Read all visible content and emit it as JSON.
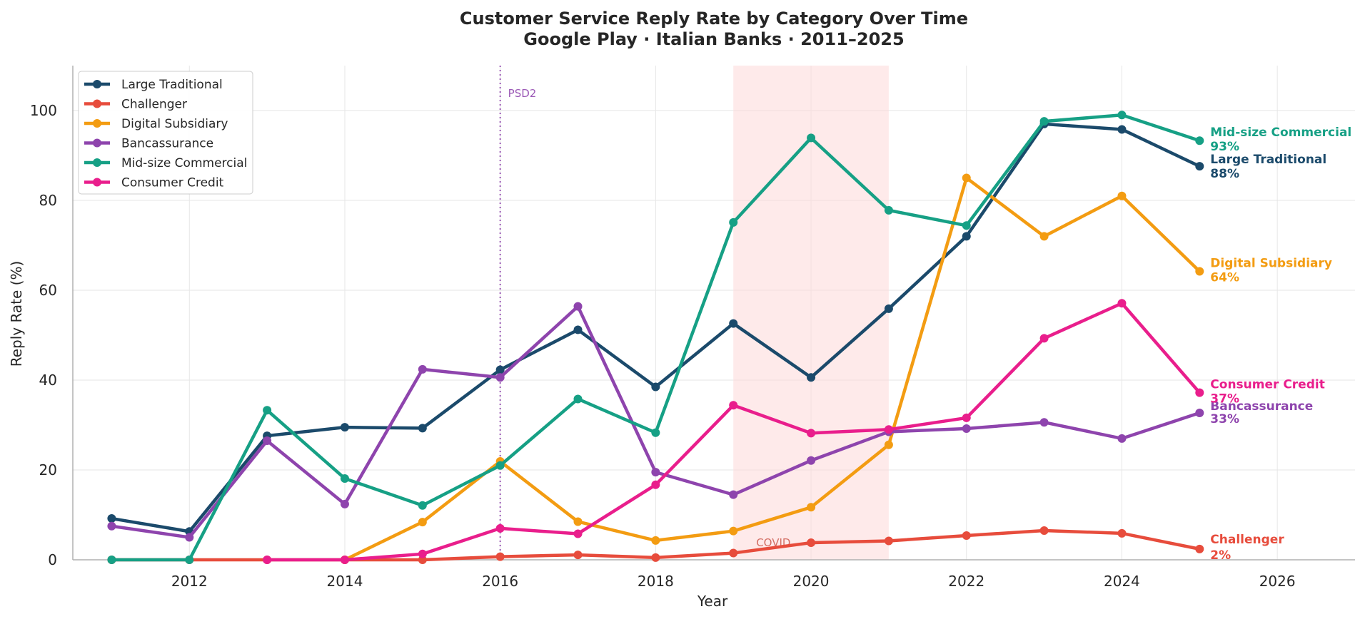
{
  "chart_data": {
    "type": "line",
    "title": "Customer Service Reply Rate by Category Over Time",
    "subtitle": "Google Play · Italian Banks · 2011–2025",
    "xlabel": "Year",
    "ylabel": "Reply Rate (%)",
    "xlim": [
      2010.5,
      2027
    ],
    "ylim": [
      0,
      110
    ],
    "xticks": [
      2012,
      2014,
      2016,
      2018,
      2020,
      2022,
      2024,
      2026
    ],
    "yticks": [
      0,
      20,
      40,
      60,
      80,
      100
    ],
    "grid": true,
    "legend_position": "upper-left",
    "x": [
      2011,
      2012,
      2013,
      2014,
      2015,
      2016,
      2017,
      2018,
      2019,
      2020,
      2021,
      2022,
      2023,
      2024,
      2025
    ],
    "series": [
      {
        "name": "Large Traditional",
        "color": "#1b4a6b",
        "values": [
          9.2,
          6.3,
          27.6,
          29.5,
          29.3,
          42.3,
          51.2,
          38.5,
          52.6,
          40.6,
          55.9,
          72.0,
          97.0,
          95.8,
          87.6
        ],
        "end_label": "Large Traditional",
        "end_value": "88%"
      },
      {
        "name": "Challenger",
        "color": "#e74c3c",
        "values": [
          0,
          0,
          0,
          0,
          0,
          0.7,
          1.1,
          0.5,
          1.5,
          3.8,
          4.2,
          5.4,
          6.5,
          5.9,
          2.4
        ],
        "end_label": "Challenger",
        "end_value": "2%"
      },
      {
        "name": "Digital Subsidiary",
        "color": "#f39c12",
        "values": [
          null,
          null,
          null,
          0,
          8.4,
          21.9,
          8.5,
          4.3,
          6.4,
          11.7,
          25.6,
          85.0,
          72.0,
          81.0,
          64.2
        ],
        "end_label": "Digital Subsidiary",
        "end_value": "64%"
      },
      {
        "name": "Bancassurance",
        "color": "#8e44ad",
        "values": [
          7.5,
          5.0,
          26.5,
          12.4,
          42.4,
          40.6,
          56.4,
          19.5,
          14.5,
          22.1,
          28.5,
          29.2,
          30.6,
          27.0,
          32.7
        ],
        "end_label": "Bancassurance",
        "end_value": "33%"
      },
      {
        "name": "Mid-size Commercial",
        "color": "#16a085",
        "values": [
          0,
          0,
          33.3,
          18.1,
          12.1,
          21.0,
          35.8,
          28.3,
          75.1,
          93.9,
          77.8,
          74.4,
          97.6,
          99.0,
          93.3
        ],
        "end_label": "Mid-size Commercial",
        "end_value": "93%"
      },
      {
        "name": "Consumer Credit",
        "color": "#e91e8c",
        "values": [
          null,
          null,
          0,
          0,
          1.3,
          7.0,
          5.8,
          16.7,
          34.4,
          28.2,
          29.0,
          31.6,
          49.3,
          57.1,
          37.2
        ],
        "end_label": "Consumer Credit",
        "end_value": "37%"
      }
    ],
    "annotations": {
      "psd2": {
        "label": "PSD2",
        "x": 2016,
        "color": "#9b59b6"
      },
      "covid": {
        "label": "COVID",
        "x_start": 2019,
        "x_end": 2021,
        "color": "#c0392b"
      }
    }
  }
}
